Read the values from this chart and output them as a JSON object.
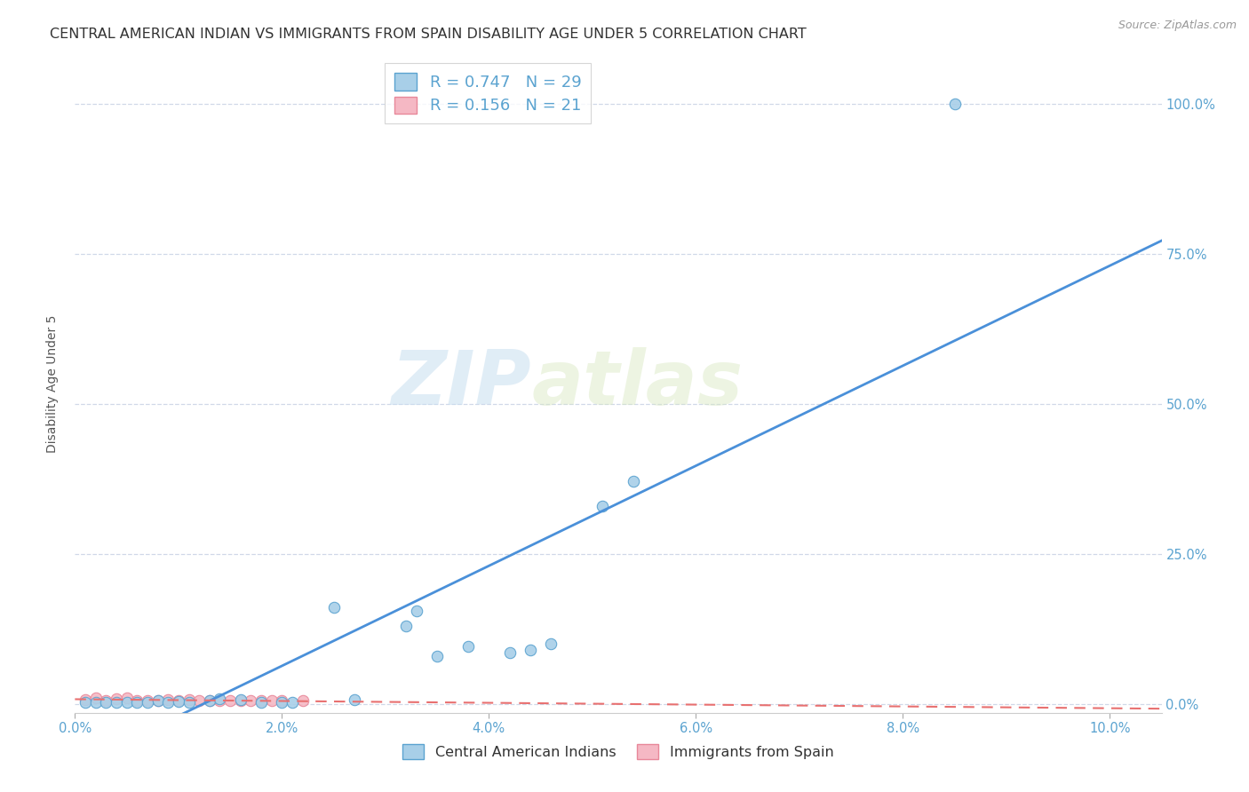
{
  "title": "CENTRAL AMERICAN INDIAN VS IMMIGRANTS FROM SPAIN DISABILITY AGE UNDER 5 CORRELATION CHART",
  "source": "Source: ZipAtlas.com",
  "ylabel": "Disability Age Under 5",
  "xlim": [
    0.0,
    0.105
  ],
  "ylim": [
    -0.015,
    1.08
  ],
  "xticks": [
    0.0,
    0.02,
    0.04,
    0.06,
    0.08,
    0.1
  ],
  "xtick_labels": [
    "0.0%",
    "2.0%",
    "4.0%",
    "6.0%",
    "8.0%",
    "10.0%"
  ],
  "yticks_right": [
    0.0,
    0.25,
    0.5,
    0.75,
    1.0
  ],
  "ytick_labels_right": [
    "0.0%",
    "25.0%",
    "50.0%",
    "75.0%",
    "100.0%"
  ],
  "blue_color": "#a8cfe8",
  "blue_edge_color": "#5ba3d0",
  "pink_color": "#f5b8c4",
  "pink_edge_color": "#e8889a",
  "regression_blue_color": "#4a90d9",
  "regression_pink_color": "#e87070",
  "r_blue": 0.747,
  "n_blue": 29,
  "r_pink": 0.156,
  "n_pink": 21,
  "legend_label_blue": "Central American Indians",
  "legend_label_pink": "Immigrants from Spain",
  "watermark_zip": "ZIP",
  "watermark_atlas": "atlas",
  "blue_scatter_x": [
    0.001,
    0.002,
    0.003,
    0.004,
    0.005,
    0.006,
    0.007,
    0.008,
    0.009,
    0.01,
    0.011,
    0.013,
    0.014,
    0.016,
    0.018,
    0.02,
    0.021,
    0.025,
    0.027,
    0.032,
    0.033,
    0.035,
    0.038,
    0.042,
    0.044,
    0.046,
    0.051,
    0.054,
    0.085
  ],
  "blue_scatter_y": [
    0.003,
    0.003,
    0.002,
    0.003,
    0.003,
    0.002,
    0.003,
    0.005,
    0.003,
    0.004,
    0.003,
    0.005,
    0.008,
    0.007,
    0.003,
    0.003,
    0.003,
    0.16,
    0.007,
    0.13,
    0.155,
    0.08,
    0.095,
    0.085,
    0.09,
    0.1,
    0.33,
    0.37,
    1.0
  ],
  "pink_scatter_x": [
    0.001,
    0.002,
    0.003,
    0.004,
    0.005,
    0.006,
    0.007,
    0.008,
    0.009,
    0.01,
    0.011,
    0.012,
    0.013,
    0.014,
    0.015,
    0.016,
    0.017,
    0.018,
    0.019,
    0.02,
    0.022
  ],
  "pink_scatter_y": [
    0.007,
    0.01,
    0.005,
    0.008,
    0.01,
    0.005,
    0.005,
    0.006,
    0.007,
    0.005,
    0.007,
    0.005,
    0.005,
    0.005,
    0.005,
    0.006,
    0.005,
    0.005,
    0.005,
    0.005,
    0.005
  ],
  "grid_color": "#d0d8e8",
  "background_color": "#ffffff",
  "title_fontsize": 11.5,
  "axis_label_fontsize": 10,
  "tick_fontsize": 10.5,
  "marker_size": 80
}
